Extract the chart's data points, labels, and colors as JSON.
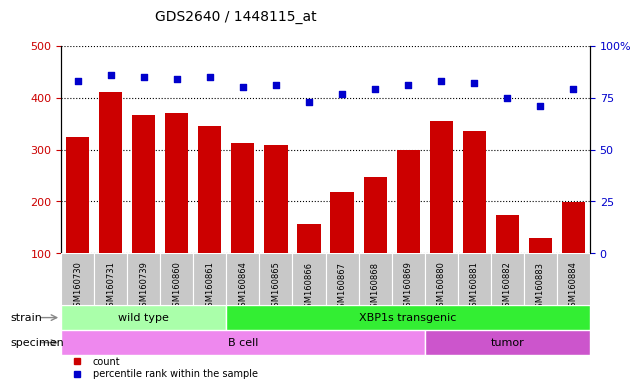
{
  "title": "GDS2640 / 1448115_at",
  "samples": [
    "GSM160730",
    "GSM160731",
    "GSM160739",
    "GSM160860",
    "GSM160861",
    "GSM160864",
    "GSM160865",
    "GSM160866",
    "GSM160867",
    "GSM160868",
    "GSM160869",
    "GSM160880",
    "GSM160881",
    "GSM160882",
    "GSM160883",
    "GSM160884"
  ],
  "counts": [
    324,
    411,
    366,
    370,
    345,
    313,
    308,
    157,
    218,
    248,
    300,
    356,
    336,
    174,
    129,
    198
  ],
  "percentiles": [
    83,
    86,
    85,
    84,
    85,
    80,
    81,
    73,
    77,
    79,
    81,
    83,
    82,
    75,
    71,
    79
  ],
  "ylim_left": [
    100,
    500
  ],
  "ylim_right": [
    0,
    100
  ],
  "yticks_left": [
    100,
    200,
    300,
    400,
    500
  ],
  "yticks_right": [
    0,
    25,
    50,
    75,
    100
  ],
  "bar_color": "#cc0000",
  "dot_color": "#0000cc",
  "grid_color": "#000000",
  "background_color": "#ffffff",
  "tick_bg_color": "#c8c8c8",
  "strain_groups": [
    {
      "label": "wild type",
      "start": 0,
      "end": 5,
      "color": "#aaffaa"
    },
    {
      "label": "XBP1s transgenic",
      "start": 5,
      "end": 16,
      "color": "#33ee33"
    }
  ],
  "specimen_groups": [
    {
      "label": "B cell",
      "start": 0,
      "end": 11,
      "color": "#ee88ee"
    },
    {
      "label": "tumor",
      "start": 11,
      "end": 16,
      "color": "#cc55cc"
    }
  ],
  "legend_items": [
    {
      "label": "count",
      "color": "#cc0000"
    },
    {
      "label": "percentile rank within the sample",
      "color": "#0000cc"
    }
  ],
  "strain_label": "strain",
  "specimen_label": "specimen"
}
